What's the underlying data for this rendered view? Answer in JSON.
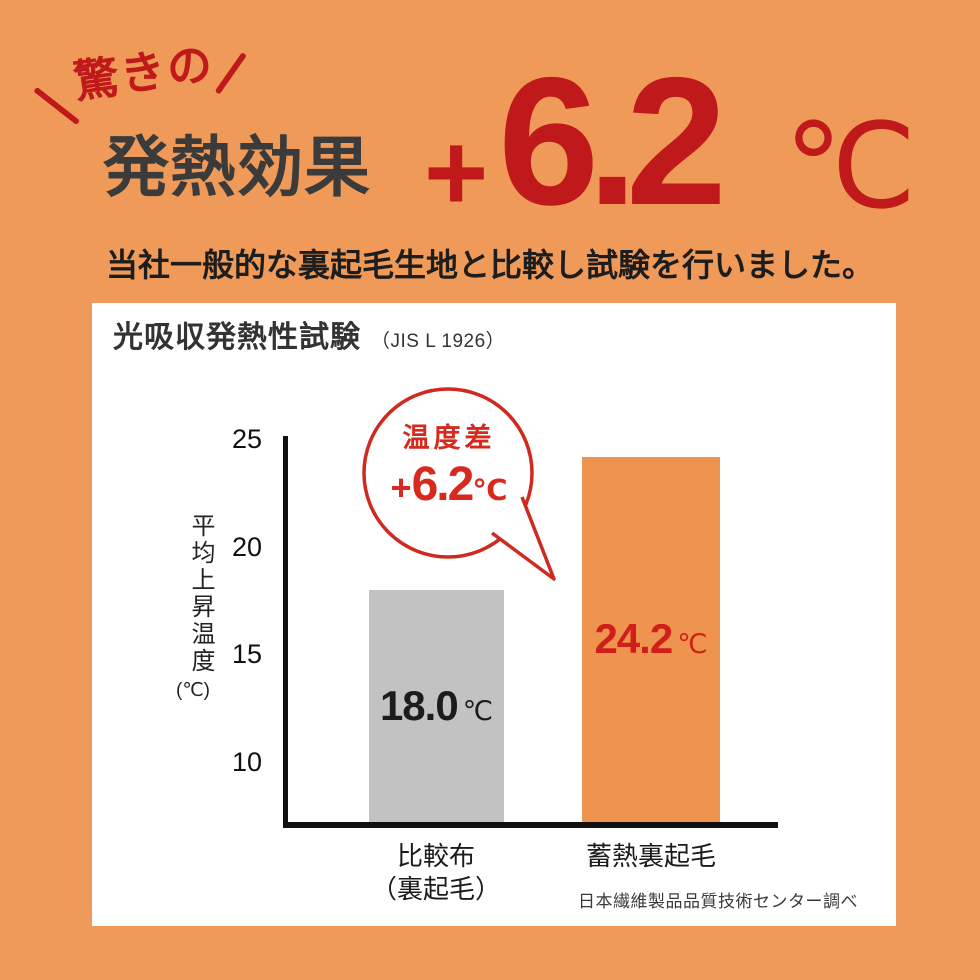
{
  "colors": {
    "background": "#ef9a58",
    "card": "#ffffff",
    "red_dark": "#c0191b",
    "red_bright": "#d7291d",
    "heading_dark": "#3b3b3b",
    "bar_gray": "#c2c2c2",
    "bar_orange": "#ef944e",
    "axis_black": "#101010"
  },
  "header": {
    "kicker": "驚きの",
    "title": "発熱効果",
    "plus": "+",
    "value": "6.2",
    "unit": "℃",
    "subtitle": "当社一般的な裏起毛生地と比較し試験を行いました。"
  },
  "card": {
    "title": "光吸収発熱性試験",
    "title_note": "（JIS L 1926）",
    "source": "日本繊維製品品質技術センター調べ"
  },
  "chart": {
    "ylabel": "平均上昇温度",
    "ylabel_unit": "(℃)",
    "bubble": {
      "title": "温度差",
      "plus": "+",
      "value": "6.2",
      "unit": "℃"
    },
    "bars": [
      {
        "value": "18.0",
        "unit": "℃",
        "cat_line1": "比較布",
        "cat_line2": "（裏起毛）"
      },
      {
        "value": "24.2",
        "unit": "℃",
        "cat_line1": "蓄熱裏起毛",
        "cat_line2": ""
      }
    ]
  },
  "chart_data": {
    "type": "bar",
    "title": "光吸収発熱性試験（JIS L 1926）",
    "categories": [
      "比較布（裏起毛）",
      "蓄熱裏起毛"
    ],
    "values": [
      18.0,
      24.2
    ],
    "value_labels": [
      "18.0℃",
      "24.2℃"
    ],
    "bar_colors": [
      "#c2c2c2",
      "#ef944e"
    ],
    "ylabel": "平均上昇温度(℃)",
    "yticks": [
      25,
      20,
      15,
      10
    ],
    "ylim": [
      7.2,
      26
    ],
    "grid": false,
    "legend": "none",
    "annotation": "温度差 +6.2℃",
    "source": "日本繊維製品品質技術センター調べ"
  }
}
